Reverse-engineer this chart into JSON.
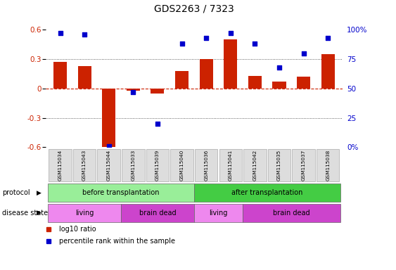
{
  "title": "GDS2263 / 7323",
  "samples": [
    "GSM115034",
    "GSM115043",
    "GSM115044",
    "GSM115033",
    "GSM115039",
    "GSM115040",
    "GSM115036",
    "GSM115041",
    "GSM115042",
    "GSM115035",
    "GSM115037",
    "GSM115038"
  ],
  "log10_ratio": [
    0.27,
    0.23,
    -0.62,
    -0.02,
    -0.05,
    0.18,
    0.3,
    0.5,
    0.13,
    0.07,
    0.12,
    0.35
  ],
  "percentile_rank": [
    97,
    96,
    1,
    47,
    20,
    88,
    93,
    97,
    88,
    68,
    80,
    93
  ],
  "ylim_left": [
    -0.6,
    0.6
  ],
  "ylim_right": [
    0,
    100
  ],
  "yticks_left": [
    -0.6,
    -0.3,
    0.0,
    0.3,
    0.6
  ],
  "yticks_right": [
    0,
    25,
    50,
    75,
    100
  ],
  "ytick_labels_left": [
    "-0.6",
    "-0.3",
    "0",
    "0.3",
    "0.6"
  ],
  "ytick_labels_right": [
    "0%",
    "25",
    "50",
    "75",
    "100%"
  ],
  "bar_color": "#cc2200",
  "dot_color": "#0000cc",
  "protocol_groups": [
    {
      "label": "before transplantation",
      "start": 0,
      "end": 6,
      "color": "#99ee99"
    },
    {
      "label": "after transplantation",
      "start": 6,
      "end": 12,
      "color": "#44cc44"
    }
  ],
  "disease_groups": [
    {
      "label": "living",
      "start": 0,
      "end": 3,
      "color": "#ee88ee"
    },
    {
      "label": "brain dead",
      "start": 3,
      "end": 6,
      "color": "#cc44cc"
    },
    {
      "label": "living",
      "start": 6,
      "end": 8,
      "color": "#ee88ee"
    },
    {
      "label": "brain dead",
      "start": 8,
      "end": 12,
      "color": "#cc44cc"
    }
  ],
  "protocol_label": "protocol",
  "disease_label": "disease state",
  "legend_items": [
    {
      "label": "log10 ratio",
      "color": "#cc2200"
    },
    {
      "label": "percentile rank within the sample",
      "color": "#0000cc"
    }
  ],
  "background_color": "#ffffff",
  "dotted_line_color": "#333333",
  "zero_line_color": "#cc2200",
  "tick_color_left": "#cc2200",
  "tick_color_right": "#0000cc",
  "sample_box_color": "#dddddd",
  "sample_box_edge": "#aaaaaa"
}
